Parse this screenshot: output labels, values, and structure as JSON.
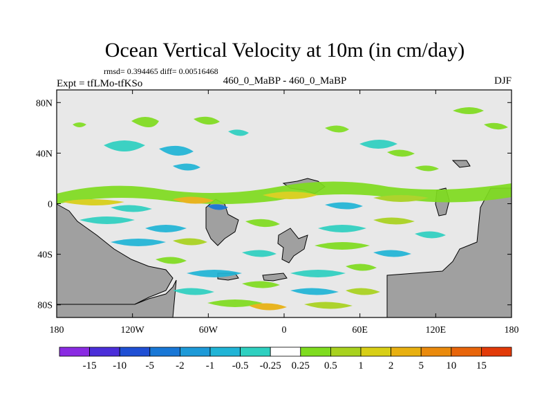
{
  "chart_data": {
    "type": "heatmap",
    "title": "Ocean Vertical Velocity at 10m (in cm/day)",
    "stats": "rmsd= 0.394465 diff= 0.00516468",
    "left_label": "Expt = tfLMo-tfKSo",
    "center_label": "460_0_MaBP - 460_0_MaBP",
    "right_label": "DJF",
    "xticks": [
      "180",
      "120W",
      "60W",
      "0",
      "60E",
      "120E",
      "180"
    ],
    "yticks": [
      "80N",
      "40N",
      "0",
      "40S",
      "80S"
    ],
    "lon_range": [
      -180,
      180
    ],
    "lat_range": [
      -90,
      90
    ],
    "colorbar": {
      "labels": [
        "-15",
        "-10",
        "-5",
        "-2",
        "-1",
        "-0.5",
        "-0.25",
        "0.25",
        "0.5",
        "1",
        "2",
        "5",
        "10",
        "15"
      ],
      "colors": [
        "#8a2be2",
        "#4b2ed9",
        "#1f4fd4",
        "#1877d6",
        "#1d9ad8",
        "#20b4d6",
        "#2ed0c0",
        "#ffffff",
        "#7fdc1f",
        "#a8d21e",
        "#d8cf15",
        "#e8b010",
        "#ea8a0c",
        "#e8650a",
        "#e23a08"
      ]
    },
    "land_color": "#a0a0a0",
    "background_color": "#e8e8e8"
  }
}
